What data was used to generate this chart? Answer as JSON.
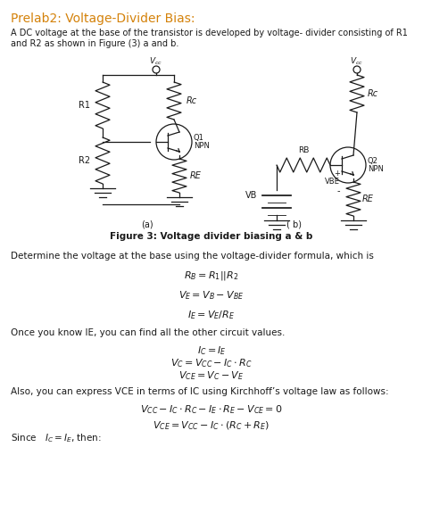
{
  "title": "Prelab2: Voltage-Divider Bias:",
  "title_color": "#d4820a",
  "bg_color": "#ffffff",
  "body_color": "#1a1a1a",
  "fig_width": 4.74,
  "fig_height": 5.94,
  "dpi": 100,
  "para1_line1": "A DC voltage at the base of the transistor is developed by voltage- divider consisting of R1",
  "para1_line2": "and R2 as shown in Figure (3) a and b.",
  "fig_caption": "Figure 3: Voltage divider biasing a & b",
  "para2": "Determine the voltage at the base using the voltage-divider formula, which is",
  "eq1": "$R_B = R_1||R_2$",
  "eq2": "$V_E = V_B - V_{BE}$",
  "eq3": "$I_E = V_E/R_E$",
  "para3": "Once you know IE, you can find all the other circuit values.",
  "eq4a": "$I_C = I_E$",
  "eq4b": "$V_C = V_{CC} - I_C \\cdot R_C$",
  "eq4c": "$V_{CE} = V_C - V_E$",
  "para4": "Also, you can express VCE in terms of IC using Kirchhoff’s voltage law as follows:",
  "eq5": "$V_{CC} - I_C \\cdot R_C - I_E \\cdot R_E - V_{CE} = 0$",
  "since_label": "Since   $I_C = I_E$, then:",
  "eq6": "$V_{CE} = V_{CC} - I_C \\cdot (R_C + R_E)$"
}
